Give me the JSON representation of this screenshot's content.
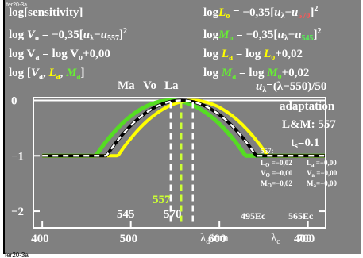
{
  "corner_top_label": "fer20-3a",
  "corner_bottom_label": "fer20-3a",
  "left_formulas": {
    "line1": "log[sensitivity]",
    "line2_prefix": "log",
    "line2_var": "V",
    "line2_sub": "o",
    "line2_rest": " = −0,35[",
    "line2_u": "u",
    "line2_lambda": "λ",
    "line2_minus": "−",
    "line2_u2": "u",
    "line2_sub2": "557",
    "line2_close": "]",
    "line2_exp": "2",
    "line3": "log V",
    "line3_sub": "a",
    "line3_rest": " = log V",
    "line3_sub2": "o",
    "line3_tail": "+0,00",
    "line4_prefix": "log [",
    "line4_V": "V",
    "line4_Vsub": "a",
    "line4_L": "L",
    "line4_Lsub": "a",
    "line4_M": "M",
    "line4_Msub": "a",
    "line4_close": "]"
  },
  "right_formulas": {
    "l_line_prefix": "log",
    "l_line_var": "L",
    "l_line_sub": "o",
    "l_line_rest": " = −0,35[",
    "l_line_u": "u",
    "l_line_lambda": "λ",
    "l_line_minus": "−",
    "l_line_u2": "u",
    "l_line_sub2": "570",
    "l_line_close": "]",
    "l_line_exp": "2",
    "m_line_prefix": "log",
    "m_line_var": "M",
    "m_line_sub": "o",
    "m_line_rest": " = −0,35[",
    "m_line_u": "u",
    "m_line_lambda": "λ",
    "m_line_minus": "−",
    "m_line_u2": "u",
    "m_line_sub2": "545",
    "m_line_close": "]",
    "m_line_exp": "2",
    "la_prefix": "log",
    "la_var": "L",
    "la_sub": "a",
    "la_rest": " = log ",
    "la_var2": "L",
    "la_sub2": "o",
    "la_tail": "+0,02",
    "ma_prefix": "log",
    "ma_var": "M",
    "ma_sub": "a",
    "ma_rest": " = log ",
    "ma_var2": "M",
    "ma_sub2": "o",
    "ma_tail": "+0,02",
    "u_formula": "u",
    "u_sub": "λ",
    "u_rest": "=(λ−550)/50"
  },
  "peak_labels": [
    "Ma",
    "Vo",
    "La"
  ],
  "adaptation": {
    "title": "adaptation",
    "lm": "L&M: 557",
    "ts": "t",
    "ts_sub": "s",
    "ts_val": "=0.1"
  },
  "stats": {
    "header": "557:",
    "row1_left": "L",
    "row1_left_sub": "O",
    "row1_left_val": " =−0,02",
    "row1_right": "L",
    "row1_right_sub": "a",
    "row1_right_val": " =−0,00",
    "row2_left": "V",
    "row2_left_sub": "O",
    "row2_left_val": " =−0,00",
    "row2_right": "V",
    "row2_right_sub": "a",
    "row2_right_val": " =−0,00",
    "row3_left": "M",
    "row3_left_sub": "O",
    "row3_left_val": "=−0,02",
    "row3_right": "M",
    "row3_right_sub": "a",
    "row3_right_val": "=−0,00"
  },
  "marker_labels": {
    "m545": "545",
    "m557": "557",
    "m570": "570",
    "ec495": "495Ec",
    "ec565": "565Ec"
  },
  "x_axis_labels": {
    "unit": "λ",
    "unit_sub": "d",
    "unit_rest": "/nm",
    "c_label": "λ",
    "c_sub": "c"
  },
  "colors": {
    "background": "#808080",
    "text": "#ffffff",
    "L_curve": "#ffff00",
    "M_curve": "#55dd22",
    "V_curve": "#000000",
    "V_dash": "#ffffff",
    "L_text": "#ffff00",
    "M_text": "#66ee33",
    "L_sub": "#ff5555",
    "M_sub": "#55ee55",
    "marker557": "#ccff33"
  },
  "chart_data": {
    "type": "line",
    "xlim": [
      390,
      720
    ],
    "ylim": [
      -2.3,
      0.05
    ],
    "x_ticks": [
      400,
      500,
      600,
      700
    ],
    "x_tick_labels": [
      "400",
      "500",
      "600",
      "700"
    ],
    "extra_x_label": "400",
    "y_ticks": [
      0,
      -1,
      -2
    ],
    "y_tick_labels": [
      "0",
      "−1",
      "−2"
    ],
    "series": [
      {
        "name": "L",
        "peak": 570,
        "floor": -1.0
      },
      {
        "name": "M",
        "peak": 545,
        "floor": -1.0
      },
      {
        "name": "V",
        "peak": 557,
        "floor": -1.0
      }
    ],
    "markers_x": [
      545,
      557,
      570
    ]
  }
}
